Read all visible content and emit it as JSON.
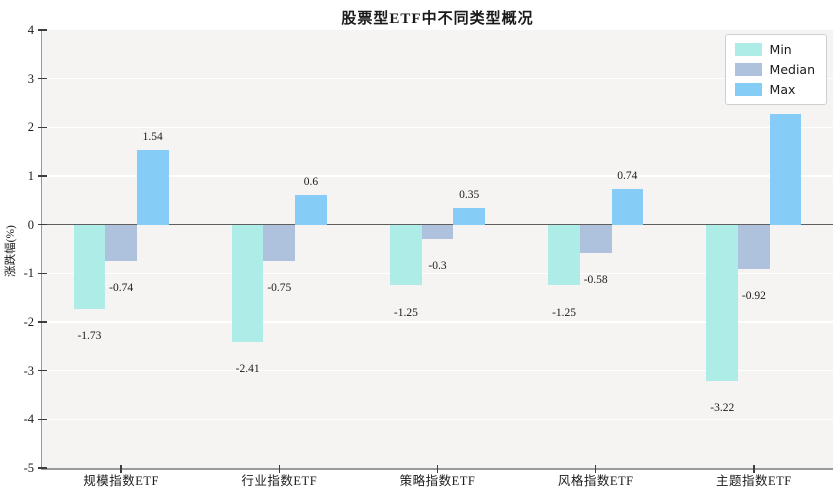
{
  "chart_data": {
    "type": "bar",
    "title": "股票型ETF中不同类型概况",
    "ylabel": "涨跌幅(%)",
    "categories": [
      "规模指数ETF",
      "行业指数ETF",
      "策略指数ETF",
      "风格指数ETF",
      "主题指数ETF"
    ],
    "series": [
      {
        "name": "Min",
        "color": "#aeece7",
        "values": [
          -1.73,
          -2.41,
          -1.25,
          -1.25,
          -3.22
        ]
      },
      {
        "name": "Median",
        "color": "#aec2de",
        "values": [
          -0.74,
          -0.75,
          -0.3,
          -0.58,
          -0.92
        ]
      },
      {
        "name": "Max",
        "color": "#85ccf7",
        "values": [
          1.54,
          0.6,
          0.35,
          0.74,
          2.27
        ]
      }
    ],
    "ylim": [
      -5,
      4
    ],
    "yticks": [
      4,
      3,
      2,
      1,
      0,
      -1,
      -2,
      -3,
      -4,
      -5
    ],
    "grid": true,
    "legend_position": "upper right",
    "colors": {
      "figure_bg": "#ffffff",
      "axes_bg": "#f5f4f2",
      "gridline": "#ffffff",
      "zero_line": "#5f5f5f",
      "spine": "#9a9a9a",
      "tick": "#3d3d3d",
      "text": "#1a1a1a"
    }
  }
}
